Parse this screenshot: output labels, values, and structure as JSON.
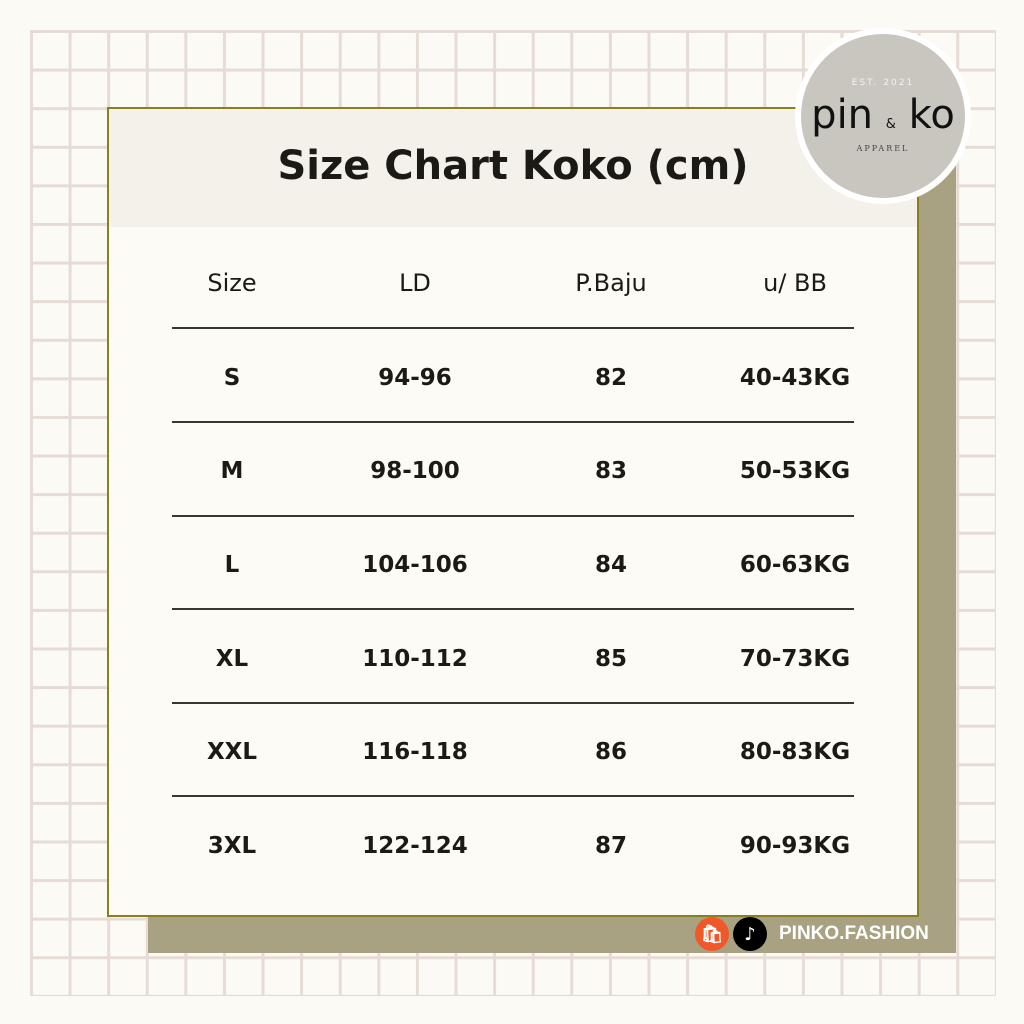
{
  "title": "Size Chart Koko (cm)",
  "logo": {
    "est": "EST. 2021",
    "name_left": "pin",
    "amp": "&",
    "name_right": "ko",
    "sub": "APPAREL"
  },
  "table": {
    "headers": [
      "Size",
      "LD",
      "P.Baju",
      "u/ BB"
    ],
    "rows": [
      [
        "S",
        "94-96",
        "82",
        "40-43KG"
      ],
      [
        "M",
        "98-100",
        "83",
        "50-53KG"
      ],
      [
        "L",
        "104-106",
        "84",
        "60-63KG"
      ],
      [
        "XL",
        "110-112",
        "85",
        "70-73KG"
      ],
      [
        "XXL",
        "116-118",
        "86",
        "80-83KG"
      ],
      [
        "3XL",
        "122-124",
        "87",
        "90-93KG"
      ]
    ]
  },
  "footer": {
    "icons": [
      "shopee-icon",
      "tiktok-icon"
    ],
    "handle": "PINKO.FASHION"
  },
  "colors": {
    "border": "#8a7f1f",
    "shadow": "#a8a283",
    "grid": "#e6dbd5",
    "shopee": "#f0582a"
  }
}
